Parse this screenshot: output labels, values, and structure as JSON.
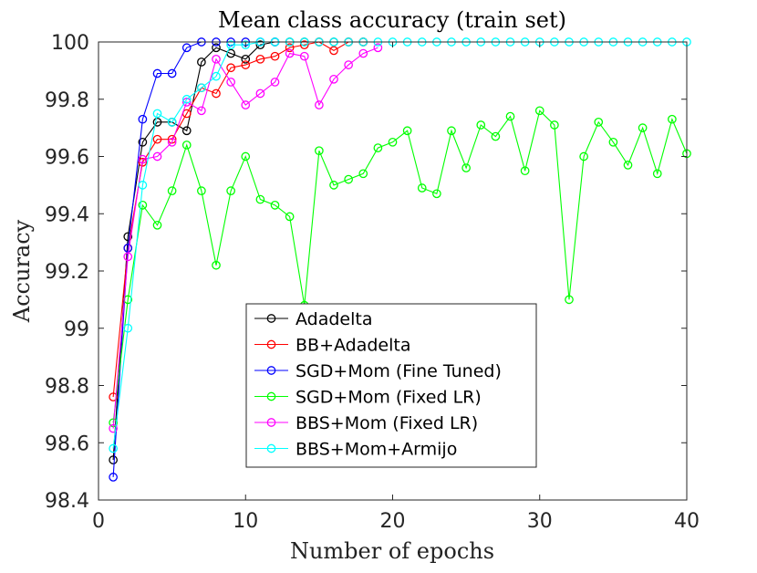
{
  "chart_data": {
    "type": "line",
    "title": "Mean class accuracy (train set)",
    "xlabel": "Number of epochs",
    "ylabel": "Accuracy",
    "xlim": [
      0,
      40
    ],
    "ylim": [
      98.4,
      100
    ],
    "xticks": [
      "0",
      "10",
      "20",
      "30",
      "40"
    ],
    "yticks": [
      "98.4",
      "98.6",
      "98.8",
      "99",
      "99.2",
      "99.4",
      "99.6",
      "99.8",
      "100"
    ],
    "grid": false,
    "legend_position": "center-bottom",
    "series": [
      {
        "name": "Adadelta",
        "color": "#000000",
        "x": [
          1,
          2,
          3,
          4,
          5,
          6,
          7,
          8,
          9,
          10,
          11,
          12,
          13,
          14,
          15,
          16,
          17,
          18
        ],
        "y": [
          98.54,
          99.32,
          99.65,
          99.72,
          99.72,
          99.69,
          99.93,
          99.98,
          99.96,
          99.94,
          99.99,
          100.0,
          100.0,
          100.0,
          100.0,
          100.0,
          100.0,
          100.0
        ]
      },
      {
        "name": "BB+Adadelta",
        "color": "#ff0000",
        "x": [
          1,
          2,
          3,
          4,
          5,
          6,
          7,
          8,
          9,
          10,
          11,
          12,
          13,
          14,
          15,
          16,
          17,
          18
        ],
        "y": [
          98.76,
          99.28,
          99.58,
          99.66,
          99.66,
          99.75,
          99.84,
          99.82,
          99.91,
          99.92,
          99.94,
          99.95,
          99.98,
          99.99,
          100.0,
          99.97,
          100.0,
          100.0
        ]
      },
      {
        "name": "SGD+Mom (Fine Tuned)",
        "color": "#0000ff",
        "x": [
          1,
          2,
          3,
          4,
          5,
          6,
          7,
          8,
          9,
          10,
          11,
          12
        ],
        "y": [
          98.48,
          99.28,
          99.73,
          99.89,
          99.89,
          99.98,
          100.0,
          100.0,
          100.0,
          100.0,
          100.0,
          100.0
        ]
      },
      {
        "name": "SGD+Mom (Fixed LR)",
        "color": "#00ff00",
        "x": [
          1,
          2,
          3,
          4,
          5,
          6,
          7,
          8,
          9,
          10,
          11,
          12,
          13,
          14,
          15,
          16,
          17,
          18,
          19,
          20,
          21,
          22,
          23,
          24,
          25,
          26,
          27,
          28,
          29,
          30,
          31,
          32,
          33,
          34,
          35,
          36,
          37,
          38,
          39,
          40
        ],
        "y": [
          98.67,
          99.1,
          99.43,
          99.36,
          99.48,
          99.64,
          99.48,
          99.22,
          99.48,
          99.6,
          99.45,
          99.43,
          99.39,
          99.08,
          99.62,
          99.5,
          99.52,
          99.54,
          99.63,
          99.65,
          99.69,
          99.49,
          99.47,
          99.69,
          99.56,
          99.71,
          99.67,
          99.74,
          99.55,
          99.76,
          99.71,
          99.1,
          99.6,
          99.72,
          99.65,
          99.57,
          99.7,
          99.54,
          99.73,
          99.61
        ]
      },
      {
        "name": "BBS+Mom (Fixed LR)",
        "color": "#ff00ff",
        "x": [
          1,
          2,
          3,
          4,
          5,
          6,
          7,
          8,
          9,
          10,
          11,
          12,
          13,
          14,
          15,
          16,
          17,
          18,
          19
        ],
        "y": [
          98.65,
          99.25,
          99.59,
          99.6,
          99.65,
          99.79,
          99.76,
          99.94,
          99.86,
          99.78,
          99.82,
          99.86,
          99.96,
          99.95,
          99.78,
          99.87,
          99.92,
          99.96,
          99.98
        ]
      },
      {
        "name": "BBS+Mom+Armijo",
        "color": "#00ffff",
        "x": [
          1,
          2,
          3,
          4,
          5,
          6,
          7,
          8,
          9,
          10,
          11,
          12,
          13,
          14,
          15,
          16,
          17,
          18,
          19,
          20,
          21,
          22,
          23,
          24,
          25,
          26,
          27,
          28,
          29,
          30,
          31,
          32,
          33,
          34,
          35,
          36,
          37,
          38,
          39,
          40
        ],
        "y": [
          98.58,
          99.0,
          99.5,
          99.75,
          99.72,
          99.8,
          99.84,
          99.88,
          99.99,
          99.99,
          100.0,
          100.0,
          100.0,
          100.0,
          100.0,
          100.0,
          100.0,
          100.0,
          100.0,
          100.0,
          100.0,
          100.0,
          100.0,
          100.0,
          100.0,
          100.0,
          100.0,
          100.0,
          100.0,
          100.0,
          100.0,
          100.0,
          100.0,
          100.0,
          100.0,
          100.0,
          100.0,
          100.0,
          100.0,
          100.0
        ]
      }
    ]
  }
}
